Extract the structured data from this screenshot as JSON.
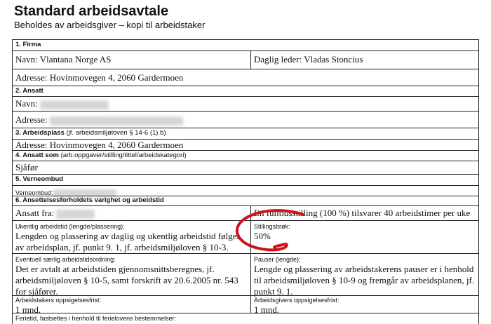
{
  "document": {
    "title": "Standard arbeidsavtale",
    "subtitle": "Beholdes av arbeidsgiver – kopi til arbeidstaker"
  },
  "sections": {
    "firma": {
      "header": "1. Firma",
      "navn": "Navn: Vlantana Norge AS",
      "daglig_leder": "Daglig leder: Vladas Stoncius",
      "adresse": "Adresse: Hovinmovegen 4, 2060 Gardermoen"
    },
    "ansatt": {
      "header": "2. Ansatt",
      "navn_label": "Navn:",
      "adresse_label": "Adresse:"
    },
    "arbeidsplass": {
      "header": "3. Arbeidsplass",
      "header_note": "(jf. arbeidsmiljøloven § 14-6 (1) b)",
      "adresse": "Adresse: Hovinmovegen 4, 2060 Gardermoen"
    },
    "ansatt_som": {
      "header": "4. Ansatt som",
      "header_note": "(arb.oppgaver/stilling/tittel/arbeidskategori)",
      "value": "Sjåfør"
    },
    "verneombud": {
      "header": "5. Verneombud",
      "label": "Verneombud:"
    },
    "varighet": {
      "header": "6. Ansettelsesforholdets varighet og arbeidstid",
      "ansatt_fra_label": "Ansatt fra:",
      "fulltid": "En fulltidsstilling (100 %) tilsvarer 40 arbeidstimer per uke",
      "ukentlig_label": "Ukentlig arbeidstid (lengde/plassering):",
      "ukentlig_value": "Lengden og plassering av daglig og ukentlig arbeidstid følger av arbeidsplan, jf. punkt 9. 1, jf. arbeidsmiljøloven § 10-3.",
      "stillingsbrok_label": "Stillingsbrøk:",
      "stillingsbrok_value": "50%",
      "saerlig_label": "Eventuell særlig arbeidstidsordning:",
      "saerlig_value": "Det er avtalt at arbeidstiden gjennomsnittsberegnes, jf. arbeidsmiljøloven § 10-5, samt forskrift av 20.6.2005 nr. 543 for sjåfører.",
      "pauser_label": "Pauser (lengde):",
      "pauser_value": "Lengde og plassering av arbeidstakerens pauser er i henhold til arbeidsmiljøloven § 10-9 og fremgår av arbeidsplanen, jf. punkt 9. 1.",
      "arbeidstaker_frist_label": "Arbeidstakers oppsigelsesfrist:",
      "arbeidstaker_frist_value": "1 mnd.",
      "arbeidsgiver_frist_label": "Arbeidsgivers oppsigelsesfrist:",
      "arbeidsgiver_frist_value": "1 mnd.",
      "ferietid_label": "Ferietid, fastsettes i henhold til ferielovens bestemmelser:"
    }
  },
  "annotation": {
    "color": "#d0121b",
    "shape": "hand-drawn-circle"
  }
}
